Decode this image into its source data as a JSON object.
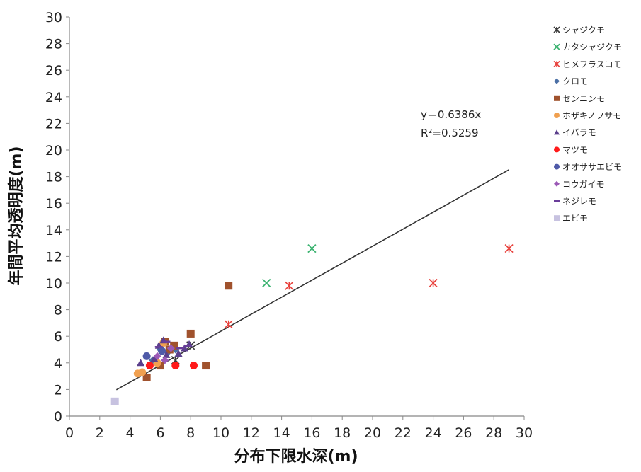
{
  "chart_data": {
    "type": "scatter",
    "title": "",
    "xlabel": "分布下限水深(m)",
    "ylabel": "年間平均透明度(m)",
    "xlim": [
      0,
      30
    ],
    "ylim": [
      0,
      30
    ],
    "x_ticks": [
      0,
      2,
      4,
      6,
      8,
      10,
      12,
      14,
      16,
      18,
      20,
      22,
      24,
      26,
      28,
      30
    ],
    "y_ticks": [
      0,
      2,
      4,
      6,
      8,
      10,
      12,
      14,
      16,
      18,
      20,
      22,
      24,
      26,
      28,
      30
    ],
    "grid": false,
    "legend_position": "right",
    "series": [
      {
        "name": "シャジクモ",
        "marker": "asterisk",
        "color": "#3a3a3a",
        "points": [
          [
            7.0,
            4.2
          ],
          [
            8.0,
            5.3
          ]
        ]
      },
      {
        "name": "カタシャジクモ",
        "marker": "x",
        "color": "#3cb371",
        "points": [
          [
            13.0,
            10.0
          ],
          [
            16.0,
            12.6
          ]
        ]
      },
      {
        "name": "ヒメフラスコモ",
        "marker": "asterisk",
        "color": "#e8413c",
        "points": [
          [
            10.5,
            6.9
          ],
          [
            14.5,
            9.8
          ],
          [
            24.0,
            10.0
          ],
          [
            29.0,
            12.6
          ]
        ]
      },
      {
        "name": "クロモ",
        "marker": "diamond",
        "color": "#4a6fa5",
        "points": [
          [
            5.5,
            4.2
          ],
          [
            6.0,
            5.0
          ],
          [
            6.5,
            4.8
          ],
          [
            7.0,
            5.0
          ]
        ]
      },
      {
        "name": "センニンモ",
        "marker": "square",
        "color": "#a0522d",
        "points": [
          [
            10.5,
            9.8
          ],
          [
            5.1,
            2.9
          ],
          [
            6.0,
            3.8
          ],
          [
            6.3,
            5.6
          ],
          [
            6.6,
            5.0
          ],
          [
            9.0,
            3.8
          ],
          [
            8.0,
            6.2
          ],
          [
            6.9,
            5.3
          ]
        ]
      },
      {
        "name": "ホザキノフサモ",
        "marker": "circle",
        "color": "#f0a050",
        "points": [
          [
            4.5,
            3.2
          ],
          [
            4.8,
            3.3
          ],
          [
            6.2,
            5.5
          ],
          [
            5.8,
            4.0
          ]
        ]
      },
      {
        "name": "イバラモ",
        "marker": "triangle",
        "color": "#5b3f8c",
        "points": [
          [
            4.7,
            4.0
          ],
          [
            5.6,
            4.3
          ],
          [
            5.9,
            5.3
          ],
          [
            6.2,
            5.7
          ],
          [
            7.6,
            5.1
          ],
          [
            7.9,
            5.4
          ],
          [
            7.2,
            4.7
          ],
          [
            6.4,
            4.6
          ]
        ]
      },
      {
        "name": "マツモ",
        "marker": "circle",
        "color": "#ff1a1a",
        "points": [
          [
            5.3,
            3.8
          ],
          [
            7.0,
            3.8
          ],
          [
            8.2,
            3.8
          ]
        ]
      },
      {
        "name": "オオササエビモ",
        "marker": "circle",
        "color": "#4f5aa8",
        "points": [
          [
            5.1,
            4.5
          ],
          [
            6.1,
            4.9
          ]
        ]
      },
      {
        "name": "コウガイモ",
        "marker": "diamond",
        "color": "#9b59b6",
        "points": [
          [
            5.8,
            4.5
          ],
          [
            6.3,
            4.2
          ],
          [
            6.7,
            5.1
          ]
        ]
      },
      {
        "name": "ネジレモ",
        "marker": "dash",
        "color": "#6a3d9a",
        "points": [
          [
            5.9,
            5.2
          ],
          [
            6.4,
            5.6
          ],
          [
            7.3,
            5.1
          ],
          [
            7.8,
            5.3
          ]
        ]
      },
      {
        "name": "エビモ",
        "marker": "square",
        "color": "#c7c2e0",
        "points": [
          [
            3.0,
            1.1
          ]
        ]
      }
    ],
    "trendline": {
      "slope": 0.6386,
      "intercept": 0,
      "x_range": [
        3.1,
        29.0
      ],
      "color": "#333333"
    },
    "annotations": {
      "equation": "y＝0.6386x",
      "r2": "R²=0.5259"
    }
  }
}
